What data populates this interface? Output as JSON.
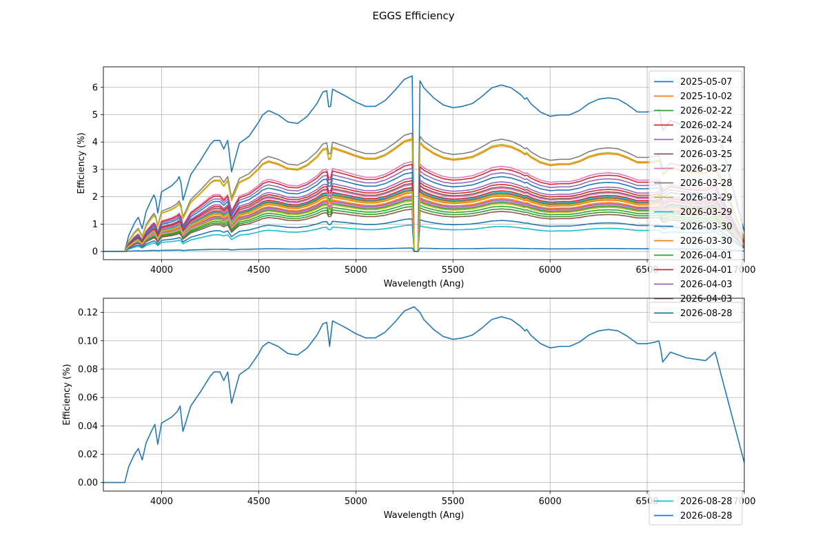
{
  "figure": {
    "title": "EGGS Efficiency"
  },
  "chart_data": [
    {
      "type": "line",
      "xlabel": "Wavelength (Ang)",
      "ylabel": "Efficiency (%)",
      "xlim": [
        3700,
        7000
      ],
      "ylim": [
        -0.3,
        6.75
      ],
      "xticks": [
        4000,
        4500,
        5000,
        5500,
        6000,
        6500,
        7000
      ],
      "yticks": [
        0,
        1,
        2,
        3,
        4,
        5,
        6
      ],
      "grid": true,
      "legend": "upper-right",
      "series": [
        {
          "name": "2025-05-07",
          "color": "#1f77b4",
          "scale": 6.45
        },
        {
          "name": "2025-10-02",
          "color": "#ff7f0e",
          "scale": 4.1
        },
        {
          "name": "2026-02-22",
          "color": "#2ca02c",
          "scale": 1.65
        },
        {
          "name": "2026-02-24",
          "color": "#d62728",
          "scale": 2.35
        },
        {
          "name": "2026-03-24",
          "color": "#9467bd",
          "scale": 2.7
        },
        {
          "name": "2026-03-25",
          "color": "#8c564b",
          "scale": 2.25
        },
        {
          "name": "2026-03-27",
          "color": "#e377c2",
          "scale": 3.3
        },
        {
          "name": "2026-03-28",
          "color": "#7f7f7f",
          "scale": 4.35
        },
        {
          "name": "2026-03-29",
          "color": "#bcbd22",
          "scale": 4.15
        },
        {
          "name": "2026-03-29",
          "color": "#17becf",
          "scale": 0.97
        },
        {
          "name": "2026-03-30",
          "color": "#1f77b4",
          "scale": 1.2
        },
        {
          "name": "2026-03-30",
          "color": "#ff7f0e",
          "scale": 2.05
        },
        {
          "name": "2026-04-01",
          "color": "#2ca02c",
          "scale": 1.9
        },
        {
          "name": "2026-04-01",
          "color": "#d62728",
          "scale": 3.2
        },
        {
          "name": "2026-04-03",
          "color": "#9467bd",
          "scale": 3.05
        },
        {
          "name": "2026-04-03",
          "color": "#8c564b",
          "scale": 2.5
        },
        {
          "name": "",
          "color": "#e377c2",
          "scale": 2.45
        },
        {
          "name": "",
          "color": "#7f7f7f",
          "scale": 2.2
        },
        {
          "name": "",
          "color": "#bcbd22",
          "scale": 1.85
        },
        {
          "name": "",
          "color": "#17becf",
          "scale": 2.3
        },
        {
          "name": "",
          "color": "#1f77b4",
          "scale": 2.9
        },
        {
          "name": "",
          "color": "#ff7f0e",
          "scale": 2.15
        },
        {
          "name": "",
          "color": "#2ca02c",
          "scale": 1.75
        },
        {
          "name": "",
          "color": "#d62728",
          "scale": 2.6
        },
        {
          "name": "",
          "color": "#9467bd",
          "scale": 2.0
        },
        {
          "name": "",
          "color": "#8c564b",
          "scale": 1.55
        },
        {
          "name": "",
          "color": "#e377c2",
          "scale": 1.95
        },
        {
          "name": "",
          "color": "#bcbd22",
          "scale": 2.2
        },
        {
          "name": "",
          "color": "#1f77b4",
          "scale": 0.124
        }
      ]
    },
    {
      "type": "line",
      "xlabel": "Wavelength (Ang)",
      "ylabel": "Efficiency (%)",
      "xlim": [
        3700,
        7000
      ],
      "ylim": [
        -0.006,
        0.13
      ],
      "xticks": [
        4000,
        4500,
        5000,
        5500,
        6000,
        6500,
        7000
      ],
      "yticks": [
        0.0,
        0.02,
        0.04,
        0.06,
        0.08,
        0.1,
        0.12
      ],
      "grid": true,
      "legend": "upper-right",
      "legend_lower": [
        {
          "name": "2026-08-28",
          "color": "#17becf"
        },
        {
          "name": "2026-08-28",
          "color": "#1f77b4"
        }
      ],
      "series": [
        {
          "name": "2026-08-28",
          "color": "#1f77b4",
          "x": [
            3700,
            3810,
            3830,
            3860,
            3880,
            3900,
            3920,
            3950,
            3965,
            3980,
            4000,
            4050,
            4080,
            4095,
            4110,
            4150,
            4200,
            4250,
            4270,
            4300,
            4320,
            4340,
            4360,
            4400,
            4450,
            4500,
            4520,
            4550,
            4600,
            4650,
            4700,
            4750,
            4800,
            4830,
            4850,
            4865,
            4880,
            4950,
            5000,
            5050,
            5100,
            5150,
            5200,
            5250,
            5300,
            5330,
            5350,
            5400,
            5450,
            5500,
            5550,
            5600,
            5650,
            5700,
            5750,
            5800,
            5850,
            5870,
            5880,
            5900,
            5950,
            6000,
            6050,
            6100,
            6150,
            6200,
            6250,
            6300,
            6350,
            6400,
            6450,
            6500,
            6540,
            6560,
            6570,
            6580,
            6620,
            6700,
            6800,
            6850,
            7000
          ],
          "y": [
            0.0,
            0.0,
            0.011,
            0.02,
            0.024,
            0.016,
            0.028,
            0.037,
            0.041,
            0.027,
            0.042,
            0.046,
            0.05,
            0.054,
            0.036,
            0.054,
            0.064,
            0.075,
            0.078,
            0.078,
            0.072,
            0.078,
            0.056,
            0.076,
            0.081,
            0.091,
            0.096,
            0.099,
            0.096,
            0.091,
            0.09,
            0.095,
            0.104,
            0.112,
            0.113,
            0.096,
            0.114,
            0.109,
            0.105,
            0.102,
            0.102,
            0.106,
            0.113,
            0.121,
            0.124,
            0.12,
            0.115,
            0.108,
            0.103,
            0.101,
            0.102,
            0.104,
            0.109,
            0.115,
            0.117,
            0.115,
            0.11,
            0.107,
            0.108,
            0.104,
            0.098,
            0.095,
            0.096,
            0.096,
            0.099,
            0.104,
            0.107,
            0.108,
            0.107,
            0.103,
            0.098,
            0.098,
            0.099,
            0.1,
            0.094,
            0.085,
            0.092,
            0.088,
            0.086,
            0.092,
            0.014
          ]
        }
      ]
    }
  ]
}
